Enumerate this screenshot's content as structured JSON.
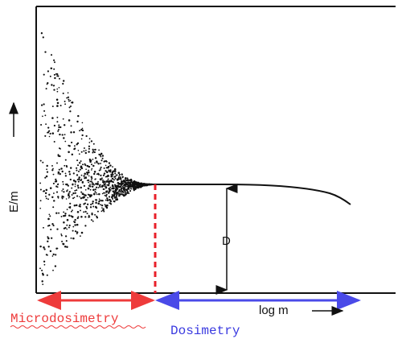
{
  "chart_data": {
    "type": "scatter",
    "xlabel": "log m",
    "ylabel": "E/m",
    "axis_arrows": true,
    "grid": false,
    "series": [
      {
        "kind": "mean-curve",
        "description_points": [
          {
            "x": 0.0,
            "y": 0.55
          },
          {
            "x": 0.35,
            "y": 0.55
          },
          {
            "x": 0.55,
            "y": 0.55
          },
          {
            "x": 0.7,
            "y": 0.54
          },
          {
            "x": 0.85,
            "y": 0.52
          },
          {
            "x": 1.0,
            "y": 0.48
          }
        ]
      }
    ],
    "scatter_envelope": {
      "x_start": 0.0,
      "x_end": 0.35,
      "center": 0.55
    },
    "annotations": {
      "D_label": "D",
      "boundary_x": 0.35
    },
    "regions": [
      {
        "label": "Microdosimetry",
        "color": "#ee3b3b"
      },
      {
        "label": "Dosimetry",
        "color": "#4a4ae8"
      }
    ]
  }
}
